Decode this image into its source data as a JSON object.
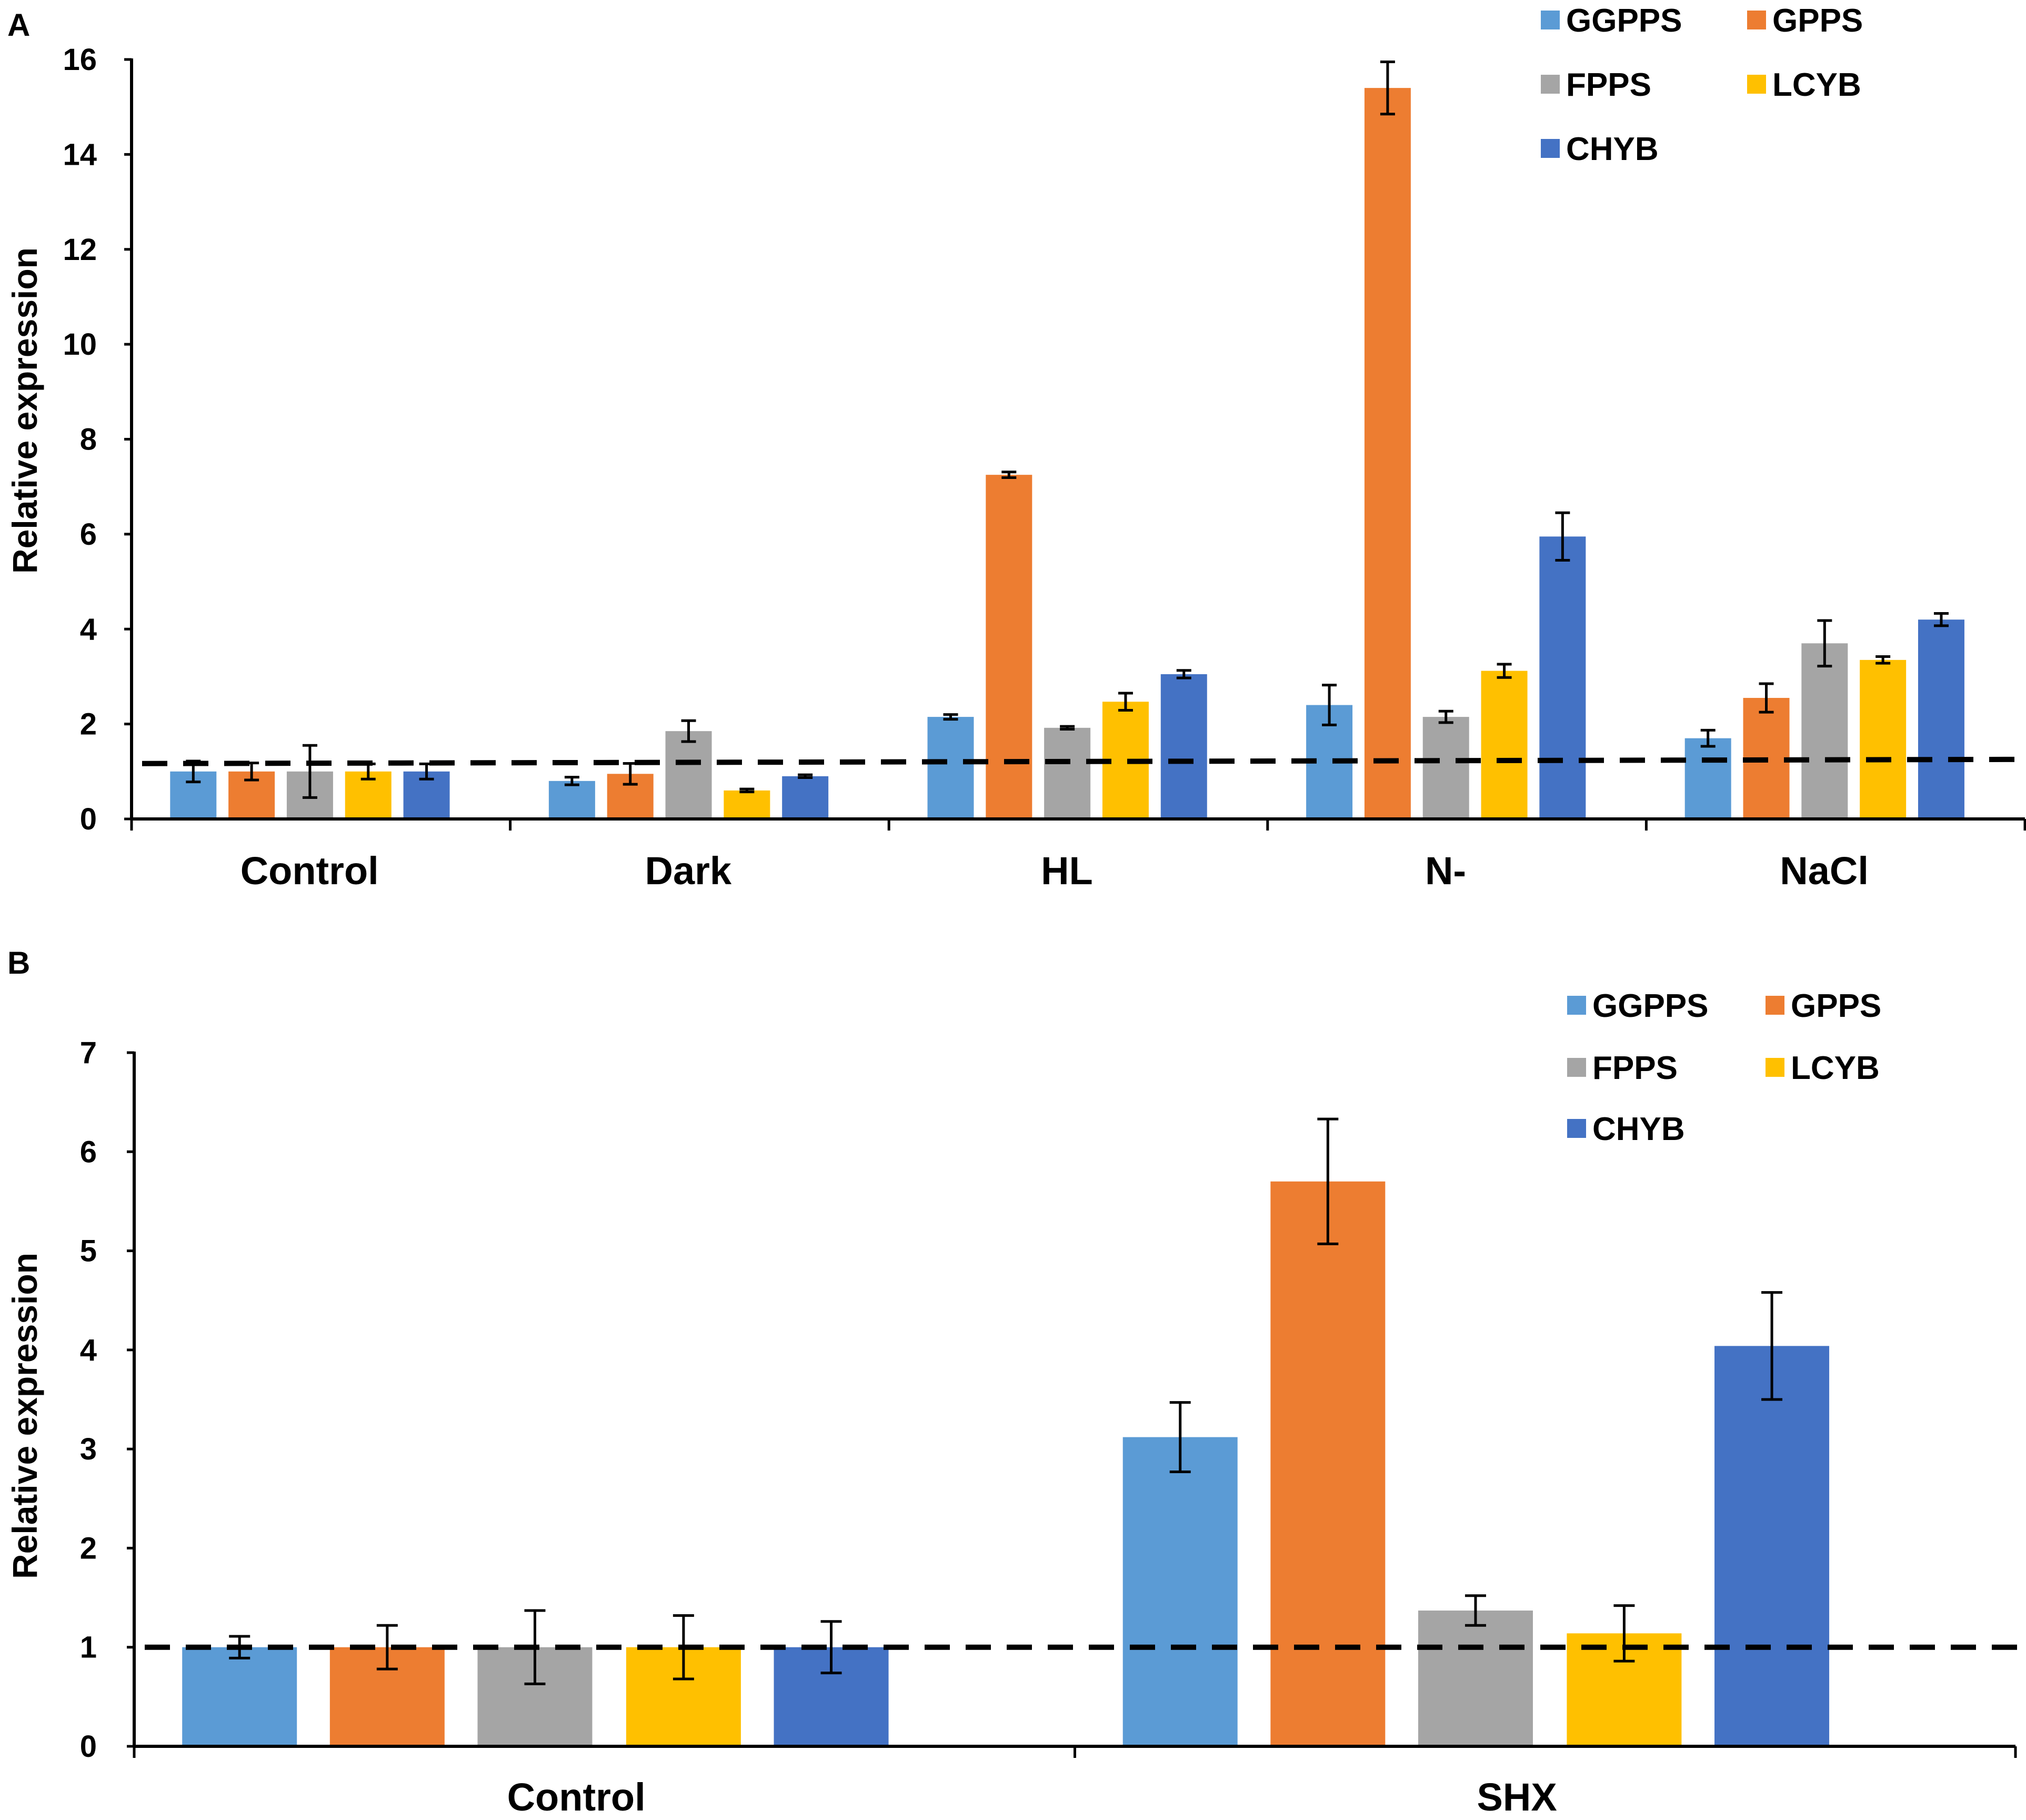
{
  "colors": {
    "GGPPS": "#5b9bd5",
    "GPPS": "#ed7d31",
    "FPPS": "#a5a5a5",
    "LCYB": "#ffc000",
    "CHYB": "#4472c4",
    "axis": "#000000",
    "baseline": "#000000"
  },
  "chart_data": [
    {
      "panel": "A",
      "type": "bar",
      "ylabel": "Relative expression",
      "ylim": [
        0,
        16
      ],
      "yticks": [
        0,
        2,
        4,
        6,
        8,
        10,
        12,
        14,
        16
      ],
      "baseline_value": 1.1,
      "categories": [
        "Control",
        "Dark",
        "HL",
        "N-",
        "NaCl"
      ],
      "legend": {
        "position": "top-right",
        "entries": [
          "GGPPS",
          "GPPS",
          "FPPS",
          "LCYB",
          "CHYB"
        ]
      },
      "series": [
        {
          "name": "GGPPS",
          "values": [
            1.0,
            0.8,
            2.15,
            2.4,
            1.7
          ],
          "errors": [
            0.22,
            0.08,
            0.05,
            0.42,
            0.17
          ]
        },
        {
          "name": "GPPS",
          "values": [
            1.0,
            0.95,
            7.25,
            15.4,
            2.55
          ],
          "errors": [
            0.18,
            0.22,
            0.06,
            0.55,
            0.3
          ]
        },
        {
          "name": "FPPS",
          "values": [
            1.0,
            1.85,
            1.92,
            2.15,
            3.7
          ],
          "errors": [
            0.55,
            0.22,
            0.03,
            0.12,
            0.48
          ]
        },
        {
          "name": "LCYB",
          "values": [
            1.0,
            0.6,
            2.47,
            3.12,
            3.35
          ],
          "errors": [
            0.16,
            0.03,
            0.18,
            0.14,
            0.07
          ]
        },
        {
          "name": "CHYB",
          "values": [
            1.0,
            0.9,
            3.05,
            5.95,
            4.2
          ],
          "errors": [
            0.16,
            0.03,
            0.08,
            0.5,
            0.13
          ]
        }
      ]
    },
    {
      "panel": "B",
      "type": "bar",
      "ylabel": "Relative expression",
      "ylim": [
        0,
        7
      ],
      "yticks": [
        0,
        1,
        2,
        3,
        4,
        5,
        6,
        7
      ],
      "baseline_value": 1.0,
      "categories": [
        "Control",
        "SHX"
      ],
      "legend": {
        "position": "top-right",
        "entries": [
          "GGPPS",
          "GPPS",
          "FPPS",
          "LCYB",
          "CHYB"
        ]
      },
      "series": [
        {
          "name": "GGPPS",
          "values": [
            1.0,
            3.12
          ],
          "errors": [
            0.11,
            0.35
          ]
        },
        {
          "name": "GPPS",
          "values": [
            1.0,
            5.7
          ],
          "errors": [
            0.22,
            0.63
          ]
        },
        {
          "name": "FPPS",
          "values": [
            1.0,
            1.37
          ],
          "errors": [
            0.37,
            0.15
          ]
        },
        {
          "name": "LCYB",
          "values": [
            1.0,
            1.14
          ],
          "errors": [
            0.32,
            0.28
          ]
        },
        {
          "name": "CHYB",
          "values": [
            1.0,
            4.04
          ],
          "errors": [
            0.26,
            0.54
          ]
        }
      ]
    }
  ]
}
